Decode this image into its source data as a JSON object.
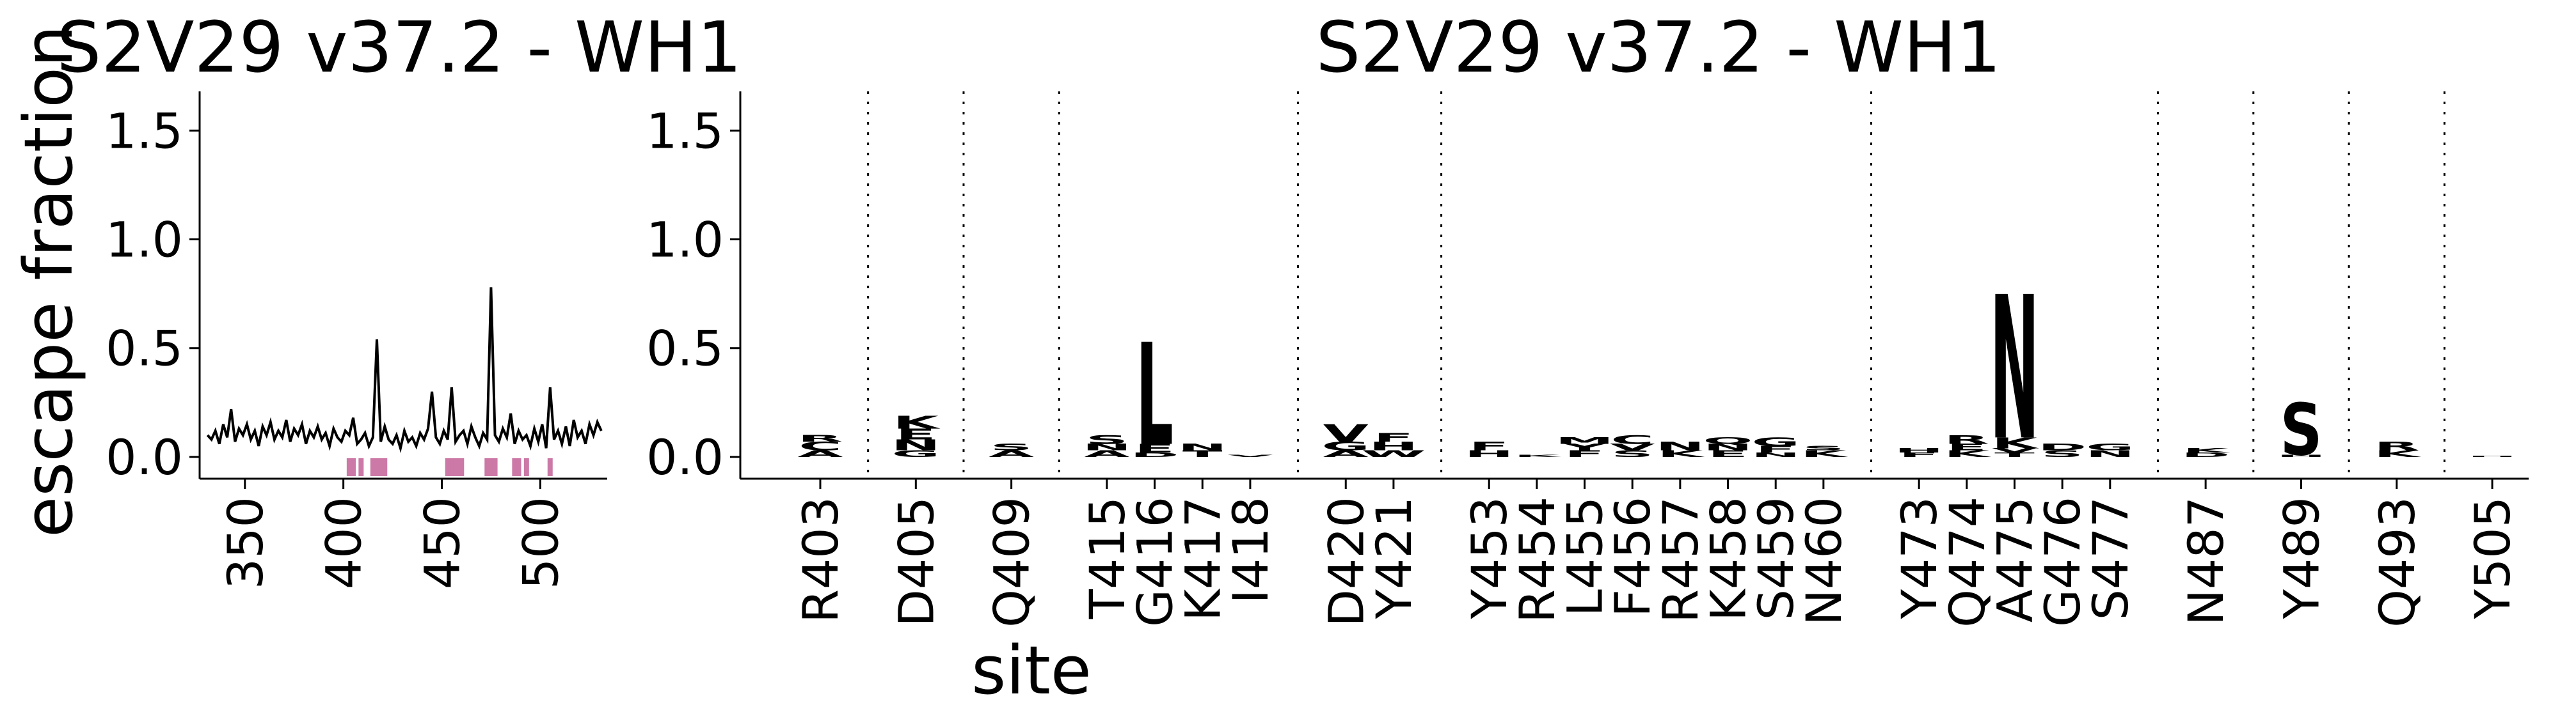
{
  "chart_data": [
    {
      "type": "line",
      "title": "S2V29 v37.2 - WH1",
      "ylabel": "escape fraction",
      "color": "#000000",
      "x": [
        331,
        333,
        335,
        337,
        339,
        341,
        343,
        345,
        347,
        349,
        351,
        353,
        355,
        357,
        359,
        361,
        363,
        365,
        367,
        369,
        371,
        373,
        375,
        377,
        379,
        381,
        383,
        385,
        387,
        389,
        391,
        393,
        395,
        397,
        399,
        401,
        403,
        405,
        407,
        409,
        411,
        413,
        415,
        417,
        419,
        421,
        423,
        425,
        427,
        429,
        431,
        433,
        435,
        437,
        439,
        441,
        443,
        445,
        447,
        449,
        451,
        453,
        455,
        457,
        459,
        461,
        463,
        465,
        467,
        469,
        471,
        473,
        475,
        477,
        479,
        481,
        483,
        485,
        487,
        489,
        491,
        493,
        495,
        497,
        499,
        501,
        503,
        505,
        507,
        509,
        511,
        513,
        515,
        517,
        519,
        521,
        523,
        525,
        527,
        529,
        531
      ],
      "values": [
        0.1,
        0.08,
        0.12,
        0.06,
        0.15,
        0.09,
        0.22,
        0.07,
        0.13,
        0.1,
        0.15,
        0.08,
        0.12,
        0.05,
        0.14,
        0.1,
        0.16,
        0.08,
        0.12,
        0.09,
        0.17,
        0.07,
        0.13,
        0.1,
        0.15,
        0.06,
        0.12,
        0.09,
        0.14,
        0.08,
        0.11,
        0.05,
        0.13,
        0.09,
        0.07,
        0.12,
        0.1,
        0.18,
        0.06,
        0.08,
        0.11,
        0.05,
        0.09,
        0.54,
        0.07,
        0.14,
        0.08,
        0.06,
        0.1,
        0.04,
        0.12,
        0.07,
        0.09,
        0.05,
        0.11,
        0.08,
        0.13,
        0.3,
        0.09,
        0.06,
        0.12,
        0.08,
        0.32,
        0.07,
        0.1,
        0.12,
        0.06,
        0.14,
        0.09,
        0.05,
        0.11,
        0.08,
        0.78,
        0.1,
        0.07,
        0.13,
        0.09,
        0.2,
        0.06,
        0.12,
        0.08,
        0.1,
        0.05,
        0.13,
        0.07,
        0.15,
        0.04,
        0.32,
        0.08,
        0.12,
        0.06,
        0.14,
        0.05,
        0.17,
        0.09,
        0.12,
        0.06,
        0.15,
        0.1,
        0.16,
        0.12
      ],
      "highlighted_sites": [
        403,
        405,
        409,
        415,
        416,
        417,
        418,
        420,
        421,
        453,
        454,
        455,
        456,
        457,
        458,
        459,
        460,
        473,
        474,
        475,
        476,
        477,
        487,
        489,
        493,
        505
      ],
      "highlight_color": "#cc79a7",
      "xlim": [
        327,
        534
      ],
      "xticks": [
        350,
        400,
        450,
        500
      ],
      "ylim": [
        -0.1,
        1.68
      ],
      "yticks": [
        {
          "value": 0,
          "label": "0.0"
        },
        {
          "value": 0.5,
          "label": "0.5"
        },
        {
          "value": 1,
          "label": "1.0"
        },
        {
          "value": 1.5,
          "label": "1.5"
        }
      ]
    },
    {
      "type": "logo",
      "title": "S2V29 v37.2 - WH1",
      "xlabel": "site",
      "categories": [
        "R403",
        "D405",
        "Q409",
        "T415",
        "G416",
        "K417",
        "I418",
        "D420",
        "Y421",
        "Y453",
        "R454",
        "L455",
        "F456",
        "R457",
        "K458",
        "S459",
        "N460",
        "Y473",
        "Q474",
        "A475",
        "G476",
        "S477",
        "N487",
        "Y489",
        "Q493",
        "Y505"
      ],
      "letters": [
        [
          {
            "letter": "A",
            "value": 0.03,
            "color": "#fec44f"
          },
          {
            "letter": "C",
            "value": 0.04,
            "color": "#cc4c02"
          },
          {
            "letter": "R",
            "value": 0.03,
            "color": "#662506"
          }
        ],
        [
          {
            "letter": "G",
            "value": 0.03,
            "color": "#fec44f"
          },
          {
            "letter": "N",
            "value": 0.05,
            "color": "#ec7014"
          },
          {
            "letter": "E",
            "value": 0.05,
            "color": "#cc4c02"
          },
          {
            "letter": "K",
            "value": 0.06,
            "color": "#993404"
          }
        ],
        [
          {
            "letter": "A",
            "value": 0.03,
            "color": "#fec44f"
          },
          {
            "letter": "S",
            "value": 0.03,
            "color": "#fe9929"
          }
        ],
        [
          {
            "letter": "A",
            "value": 0.03,
            "color": "#fee391"
          },
          {
            "letter": "N",
            "value": 0.03,
            "color": "#cc4c02"
          },
          {
            "letter": "S",
            "value": 0.04,
            "color": "#ec7014"
          }
        ],
        [
          {
            "letter": "D",
            "value": 0.02,
            "color": "#fec44f"
          },
          {
            "letter": "E",
            "value": 0.04,
            "color": "#ec7014"
          },
          {
            "letter": "L",
            "value": 0.47,
            "color": "#fee391"
          }
        ],
        [
          {
            "letter": "T",
            "value": 0.03,
            "color": "#cc4c02"
          },
          {
            "letter": "N",
            "value": 0.03,
            "color": "#993404"
          }
        ],
        [
          {
            "letter": "V",
            "value": 0.01,
            "color": "#fee391"
          }
        ],
        [
          {
            "letter": "A",
            "value": 0.03,
            "color": "#fec44f"
          },
          {
            "letter": "G",
            "value": 0.04,
            "color": "#fe9929"
          },
          {
            "letter": "V",
            "value": 0.08,
            "color": "#fee391"
          }
        ],
        [
          {
            "letter": "W",
            "value": 0.03,
            "color": "#fee391"
          },
          {
            "letter": "H",
            "value": 0.04,
            "color": "#ec7014"
          },
          {
            "letter": "F",
            "value": 0.04,
            "color": "#fec44f"
          }
        ],
        [
          {
            "letter": "H",
            "value": 0.03,
            "color": "#cc4c02"
          },
          {
            "letter": "F",
            "value": 0.04,
            "color": "#ec7014"
          }
        ],
        [
          {
            "letter": "K",
            "value": 0.01,
            "color": "#fee391"
          }
        ],
        [
          {
            "letter": "F",
            "value": 0.03,
            "color": "#fe9929"
          },
          {
            "letter": "Y",
            "value": 0.03,
            "color": "#cc4c02"
          },
          {
            "letter": "M",
            "value": 0.03,
            "color": "#993404"
          }
        ],
        [
          {
            "letter": "S",
            "value": 0.03,
            "color": "#ec7014"
          },
          {
            "letter": "V",
            "value": 0.03,
            "color": "#fee391"
          },
          {
            "letter": "C",
            "value": 0.04,
            "color": "#662506"
          }
        ],
        [
          {
            "letter": "K",
            "value": 0.03,
            "color": "#fec44f"
          },
          {
            "letter": "N",
            "value": 0.04,
            "color": "#fee391"
          }
        ],
        [
          {
            "letter": "E",
            "value": 0.03,
            "color": "#cc4c02"
          },
          {
            "letter": "N",
            "value": 0.03,
            "color": "#ec7014"
          },
          {
            "letter": "Q",
            "value": 0.03,
            "color": "#993404"
          }
        ],
        [
          {
            "letter": "N",
            "value": 0.02,
            "color": "#cc4c02"
          },
          {
            "letter": "F",
            "value": 0.03,
            "color": "#ec7014"
          },
          {
            "letter": "G",
            "value": 0.04,
            "color": "#993404"
          }
        ],
        [
          {
            "letter": "K",
            "value": 0.03,
            "color": "#cc4c02"
          },
          {
            "letter": "S",
            "value": 0.02,
            "color": "#993404"
          }
        ],
        [
          {
            "letter": "F",
            "value": 0.02,
            "color": "#ec7014"
          },
          {
            "letter": "H",
            "value": 0.02,
            "color": "#cc4c02"
          }
        ],
        [
          {
            "letter": "K",
            "value": 0.03,
            "color": "#fe9929"
          },
          {
            "letter": "E",
            "value": 0.03,
            "color": "#cc4c02"
          },
          {
            "letter": "R",
            "value": 0.04,
            "color": "#993404"
          }
        ],
        [
          {
            "letter": "T",
            "value": 0.02,
            "color": "#fec44f"
          },
          {
            "letter": "V",
            "value": 0.02,
            "color": "#cc4c02"
          },
          {
            "letter": "K",
            "value": 0.05,
            "color": "#662506"
          },
          {
            "letter": "N",
            "value": 0.66,
            "color": "#662506"
          }
        ],
        [
          {
            "letter": "S",
            "value": 0.03,
            "color": "#ec7014"
          },
          {
            "letter": "D",
            "value": 0.03,
            "color": "#993404"
          }
        ],
        [
          {
            "letter": "N",
            "value": 0.03,
            "color": "#ec7014"
          },
          {
            "letter": "G",
            "value": 0.03,
            "color": "#cc4c02"
          }
        ],
        [
          {
            "letter": "D",
            "value": 0.02,
            "color": "#cc4c02"
          },
          {
            "letter": "K",
            "value": 0.02,
            "color": "#ec7014"
          }
        ],
        [
          {
            "letter": "H",
            "value": 0.01,
            "color": "#ec7014"
          },
          {
            "letter": "S",
            "value": 0.24,
            "color": "#8c2d04"
          }
        ],
        [
          {
            "letter": "K",
            "value": 0.03,
            "color": "#fe9929"
          },
          {
            "letter": "R",
            "value": 0.04,
            "color": "#cc4c02"
          }
        ],
        [
          {
            "letter": "H",
            "value": 0.005,
            "color": "#fdd49e"
          }
        ]
      ],
      "ylim": [
        -0.1,
        1.68
      ],
      "yticks": [
        {
          "value": 0,
          "label": "0.0"
        },
        {
          "value": 0.5,
          "label": "0.5"
        },
        {
          "value": 1,
          "label": "1.0"
        },
        {
          "value": 1.5,
          "label": "1.5"
        }
      ]
    }
  ]
}
